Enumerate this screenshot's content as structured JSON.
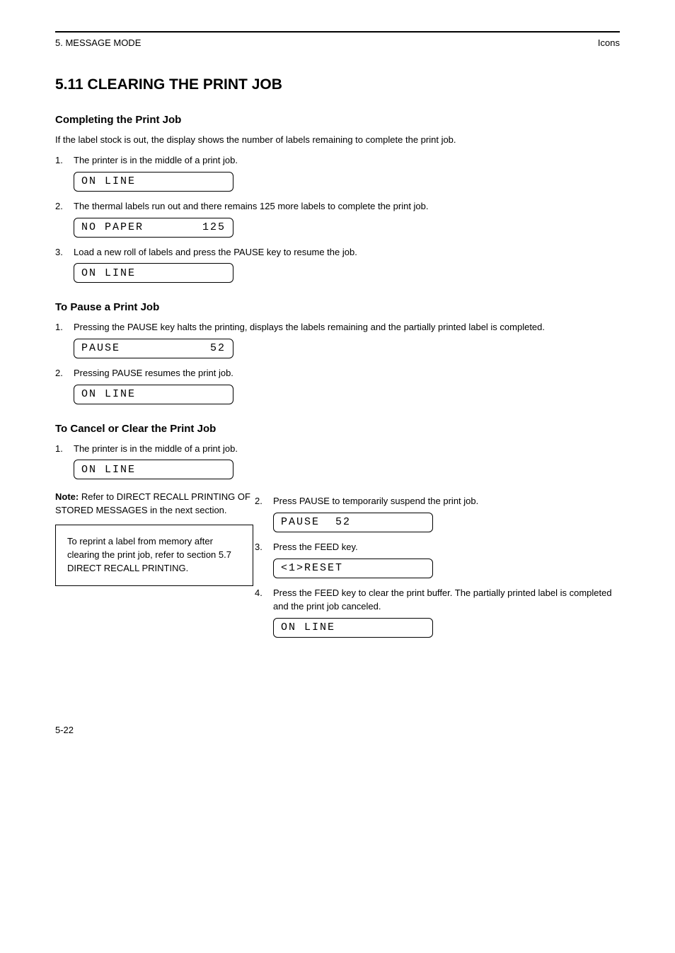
{
  "header": {
    "chapter": "5. MESSAGE MODE",
    "subtitle": "Icons"
  },
  "title": "5.11 CLEARING THE PRINT JOB",
  "intro_h2": "Completing the Print Job",
  "intro_p": "If the label stock is out, the display shows the number of labels remaining to complete the print job.",
  "steps_a": [
    {
      "num": "1.",
      "text": "The printer is in the middle of a print job."
    },
    {
      "num": "2.",
      "text": "The thermal labels run out and there remains 125 more labels to complete the print job."
    },
    {
      "num": "3.",
      "text": "Load a new roll of labels and press the PAUSE key to resume the job."
    }
  ],
  "pause_h2": "To Pause a Print Job",
  "steps_b": [
    {
      "num": "1.",
      "text": "Pressing the PAUSE key halts the printing, displays the labels remaining and the partially printed label is completed."
    },
    {
      "num": "2.",
      "text": "Pressing PAUSE resumes the print job."
    }
  ],
  "cancel_h2": "To Cancel or Clear the Print Job",
  "steps_c": [
    {
      "num": "1.",
      "text": "The printer is in the middle of a print job."
    },
    {
      "num": "2.",
      "text": "Press PAUSE to temporarily suspend the print job."
    },
    {
      "num": "3.",
      "text": "Press the FEED key."
    },
    {
      "num": "4.",
      "text": "Press the FEED key to clear the print buffer. The partially printed label is completed and the print job canceled."
    }
  ],
  "note_prefix": "Note: ",
  "note_text": "Refer to DIRECT RECALL PRINTING OF STORED MESSAGES in the next section.",
  "notebox": "To reprint a label from memory after clearing the print job, refer to section 5.7 DIRECT RECALL PRINTING.",
  "lcd": {
    "a1_left": "ON LINE",
    "a1_right": "",
    "a2_left": "NO PAPER",
    "a2_right": "125",
    "a3_left": "ON LINE",
    "a3_right": "",
    "b1_left": "PAUSE",
    "b1_right": "52",
    "b2_left": "ON LINE",
    "b2_right": "",
    "c1_left": "ON LINE",
    "c1_right": "",
    "c2_left": "PAUSE  52",
    "c2_right": "",
    "c3_left": "<1>RESET",
    "c3_right": "",
    "c4_left": "ON LINE",
    "c4_right": ""
  },
  "footer": "5-22"
}
